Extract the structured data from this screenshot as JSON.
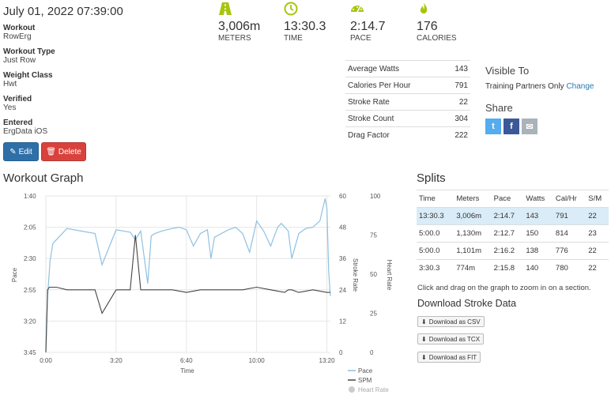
{
  "header": {
    "date": "July 01, 2022 07:39:00"
  },
  "details": [
    {
      "label": "Workout",
      "value": "RowErg"
    },
    {
      "label": "Workout Type",
      "value": "Just Row"
    },
    {
      "label": "Weight Class",
      "value": "Hwt"
    },
    {
      "label": "Verified",
      "value": "Yes"
    },
    {
      "label": "Entered",
      "value": "ErgData iOS"
    }
  ],
  "buttons": {
    "edit": "Edit",
    "delete": "Delete"
  },
  "stats": [
    {
      "value": "3,006m",
      "label": "METERS",
      "icon": "road-icon"
    },
    {
      "value": "13:30.3",
      "label": "TIME",
      "icon": "clock-icon"
    },
    {
      "value": "2:14.7",
      "label": "PACE",
      "icon": "speedometer-icon"
    },
    {
      "value": "176",
      "label": "CALORIES",
      "icon": "flame-icon"
    }
  ],
  "colors": {
    "accent": "#a8c40e",
    "edit": "#2f6fa8",
    "delete": "#d9423c",
    "pace_line": "#8ec1e0",
    "spm_line": "#444444",
    "link": "#2a7ab0"
  },
  "metrics": [
    {
      "label": "Average Watts",
      "value": "143"
    },
    {
      "label": "Calories Per Hour",
      "value": "791"
    },
    {
      "label": "Stroke Rate",
      "value": "22"
    },
    {
      "label": "Stroke Count",
      "value": "304"
    },
    {
      "label": "Drag Factor",
      "value": "222"
    }
  ],
  "visibility": {
    "title": "Visible To",
    "value": "Training Partners Only",
    "change": "Change"
  },
  "share": {
    "title": "Share",
    "twitter": "t",
    "facebook": "f",
    "email": "✉"
  },
  "graph": {
    "title": "Workout Graph",
    "xlabel": "Time",
    "pace_label": "Pace",
    "spm_label": "Stroke Rate",
    "hr_label": "Heart Rate",
    "x_ticks": [
      "0:00",
      "3:20",
      "6:40",
      "10:00",
      "13:20"
    ],
    "pace_ticks": [
      "1:40",
      "2:05",
      "2:30",
      "2:55",
      "3:20",
      "3:45"
    ],
    "spm_ticks": [
      "60",
      "48",
      "36",
      "24",
      "12",
      "0"
    ],
    "hr_ticks": [
      "100",
      "75",
      "50",
      "25",
      "0"
    ],
    "legend": [
      "Pace",
      "SPM",
      "Heart Rate"
    ]
  },
  "chart_data": {
    "type": "line",
    "x_unit": "seconds",
    "xlim": [
      0,
      810
    ],
    "series": [
      {
        "name": "Pace",
        "axis": "left",
        "x": [
          0,
          5,
          12,
          20,
          40,
          60,
          100,
          140,
          160,
          200,
          240,
          255,
          270,
          290,
          300,
          310,
          330,
          360,
          380,
          400,
          420,
          440,
          460,
          470,
          480,
          500,
          520,
          540,
          560,
          580,
          600,
          620,
          640,
          660,
          670,
          690,
          700,
          720,
          740,
          760,
          780,
          790,
          795,
          800,
          805,
          810
        ],
        "y": [
          225,
          180,
          152,
          138,
          132,
          126,
          128,
          130,
          155,
          127,
          129,
          135,
          128,
          170,
          132,
          130,
          128,
          126,
          125,
          127,
          140,
          130,
          127,
          150,
          133,
          130,
          127,
          125,
          130,
          145,
          120,
          128,
          140,
          125,
          122,
          128,
          150,
          130,
          126,
          125,
          120,
          108,
          102,
          110,
          160,
          180
        ]
      },
      {
        "name": "SPM",
        "axis": "right-1",
        "x": [
          0,
          5,
          10,
          30,
          60,
          100,
          140,
          160,
          200,
          240,
          255,
          270,
          290,
          300,
          320,
          360,
          400,
          440,
          480,
          520,
          560,
          600,
          640,
          680,
          690,
          700,
          720,
          760,
          800,
          810
        ],
        "y": [
          0,
          24,
          25,
          25,
          24,
          24,
          24,
          15,
          24,
          24,
          45,
          24,
          24,
          24,
          24,
          24,
          23,
          24,
          24,
          24,
          24,
          25,
          24,
          23,
          24,
          24,
          23,
          24,
          23,
          23
        ]
      },
      {
        "name": "Heart Rate",
        "axis": "right-2",
        "x": [],
        "y": []
      }
    ],
    "pace_axis": {
      "ticks_seconds": [
        100,
        125,
        150,
        175,
        200,
        225
      ],
      "inverted": true
    },
    "spm_axis": {
      "range": [
        0,
        60
      ]
    },
    "hr_axis": {
      "range": [
        0,
        100
      ]
    }
  },
  "splits": {
    "title": "Splits",
    "headers": [
      "Time",
      "Meters",
      "Pace",
      "Watts",
      "Cal/Hr",
      "S/M"
    ],
    "rows": [
      [
        "13:30.3",
        "3,006m",
        "2:14.7",
        "143",
        "791",
        "22"
      ],
      [
        "5:00.0",
        "1,130m",
        "2:12.7",
        "150",
        "814",
        "23"
      ],
      [
        "5:00.0",
        "1,101m",
        "2:16.2",
        "138",
        "776",
        "22"
      ],
      [
        "3:30.3",
        "774m",
        "2:15.8",
        "140",
        "780",
        "22"
      ]
    ],
    "hint": "Click and drag on the graph to zoom in on a section."
  },
  "downloads": {
    "title": "Download Stroke Data",
    "csv": "Download as CSV",
    "tcx": "Download as TCX",
    "fit": "Download as FIT"
  }
}
